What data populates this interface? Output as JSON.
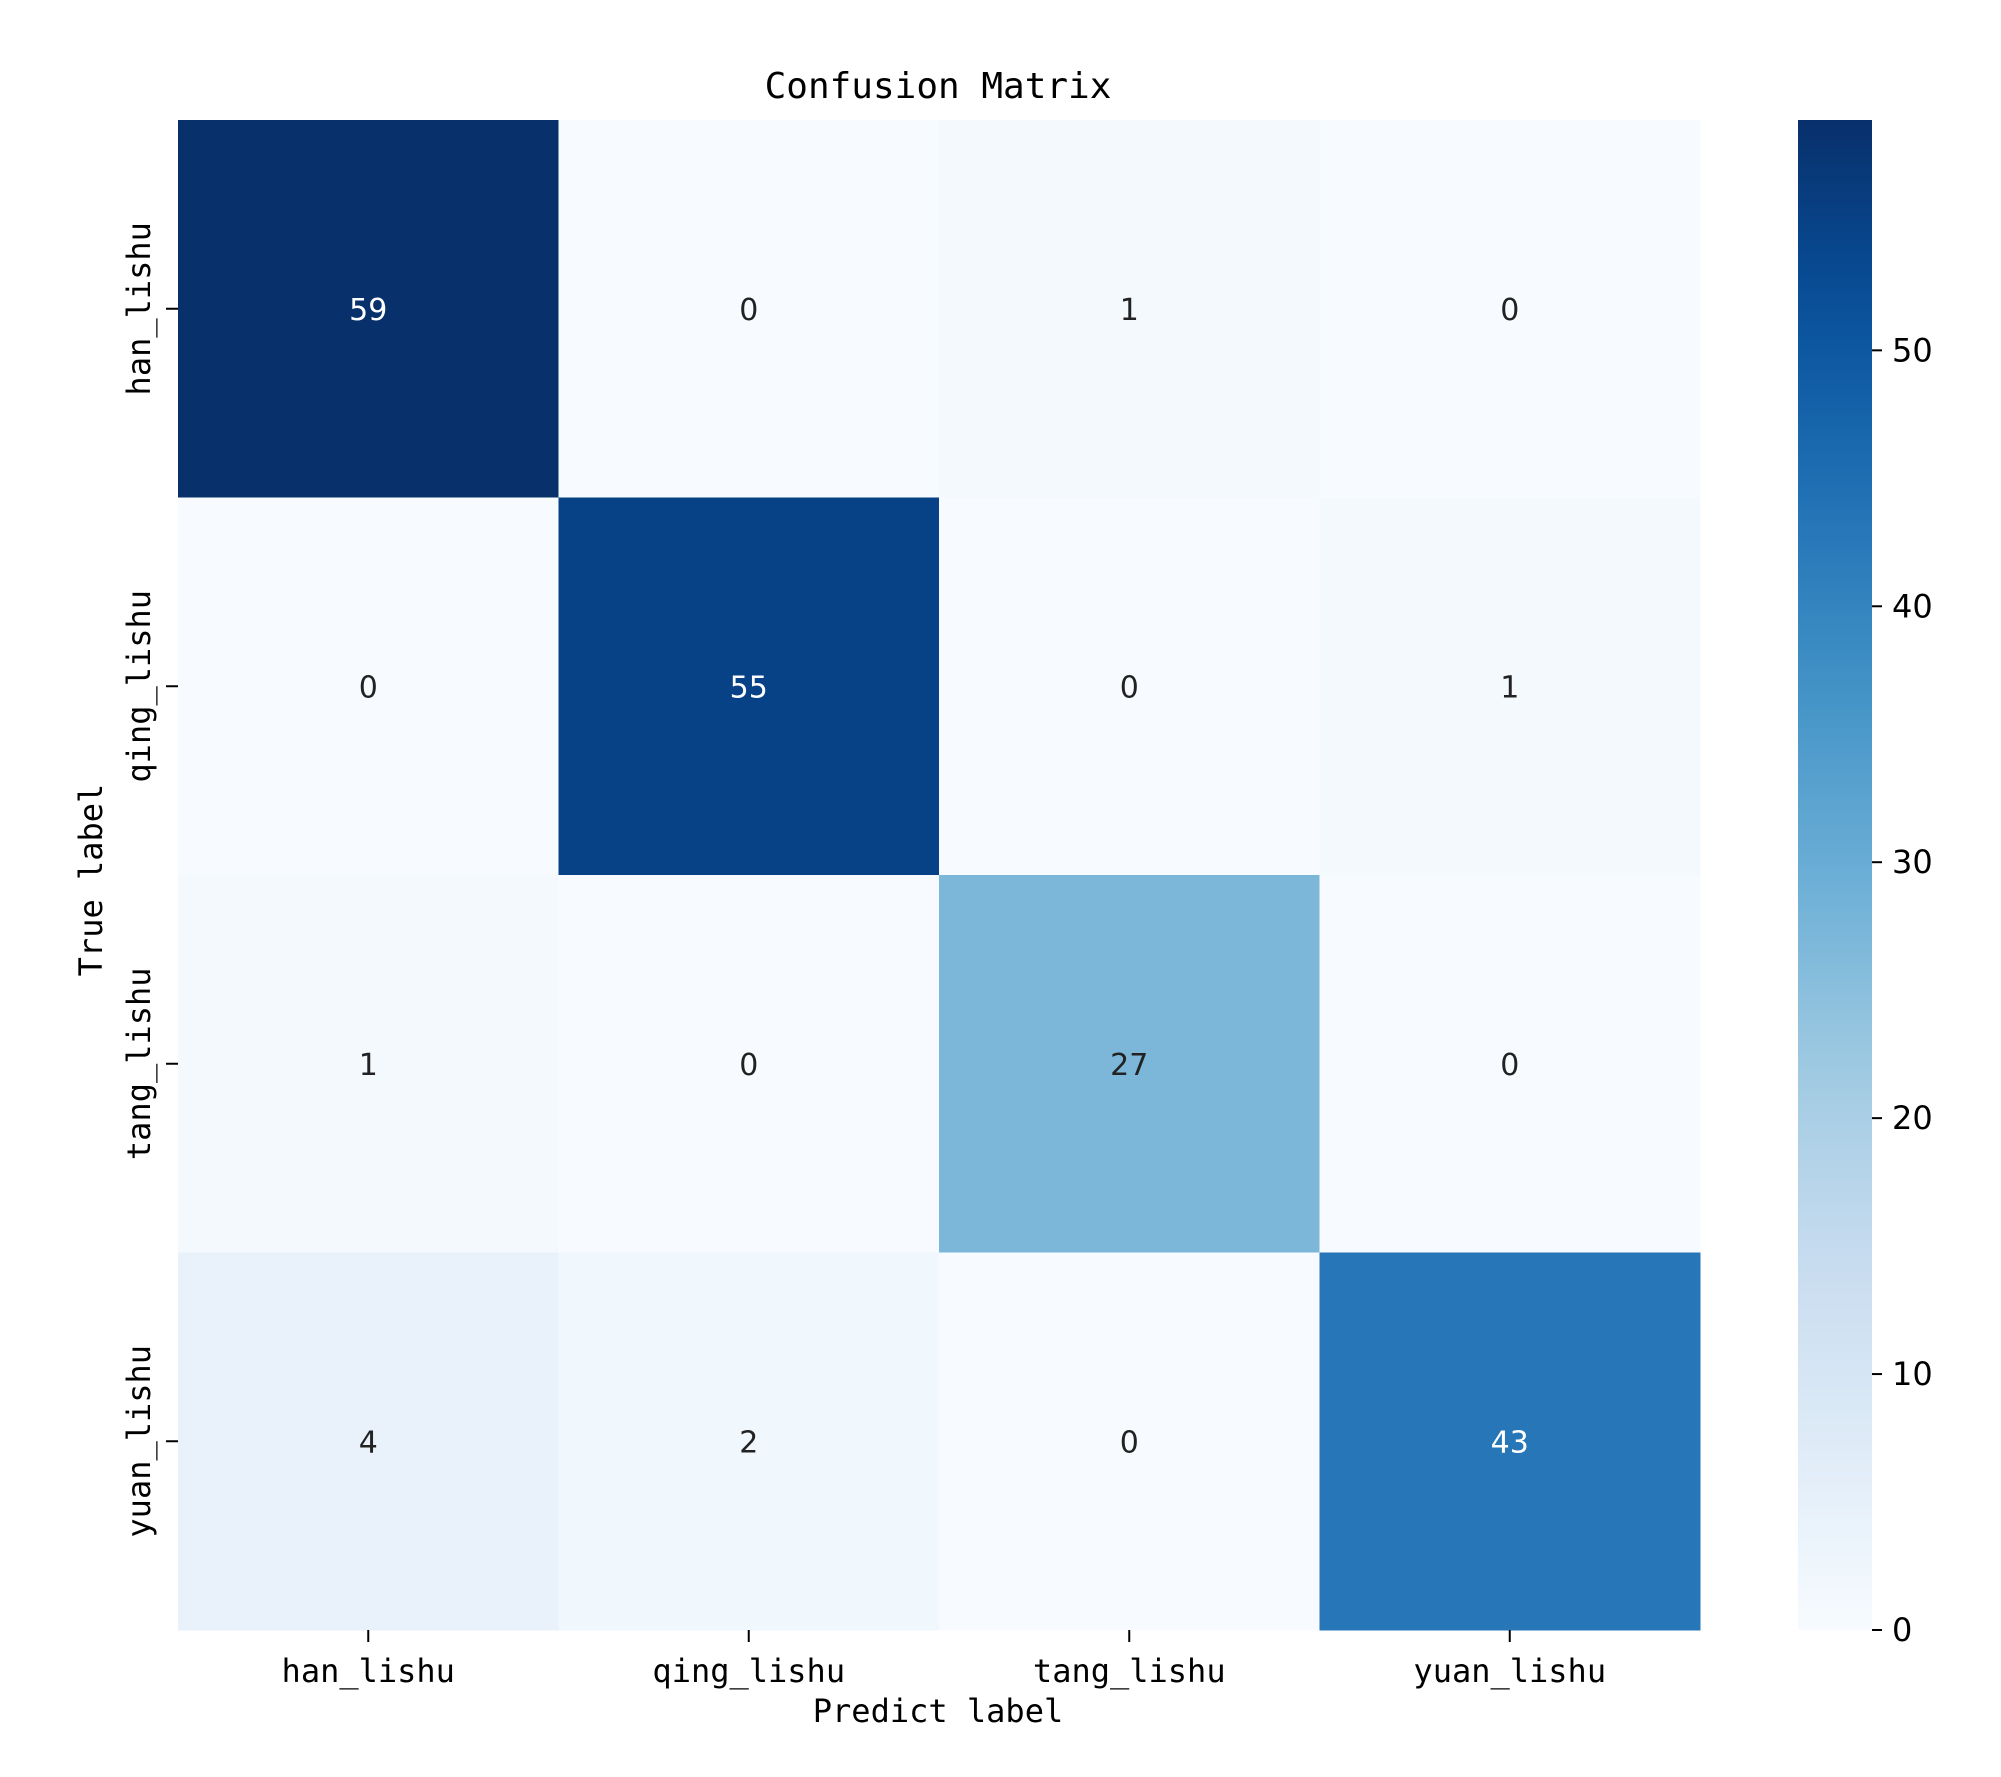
{
  "chart_data": {
    "type": "heatmap",
    "title": "Confusion Matrix",
    "xlabel": "Predict label",
    "ylabel": "True label",
    "x_categories": [
      "han_lishu",
      "qing_lishu",
      "tang_lishu",
      "yuan_lishu"
    ],
    "y_categories": [
      "han_lishu",
      "qing_lishu",
      "tang_lishu",
      "yuan_lishu"
    ],
    "matrix": [
      [
        59,
        0,
        1,
        0
      ],
      [
        0,
        55,
        0,
        1
      ],
      [
        1,
        0,
        27,
        0
      ],
      [
        4,
        2,
        0,
        43
      ]
    ],
    "colormap": "Blues",
    "color_range": [
      0,
      59
    ],
    "colorbar_ticks": [
      "0",
      "10",
      "20",
      "30",
      "40",
      "50"
    ],
    "colorbar_placement": "right",
    "grid": false
  }
}
